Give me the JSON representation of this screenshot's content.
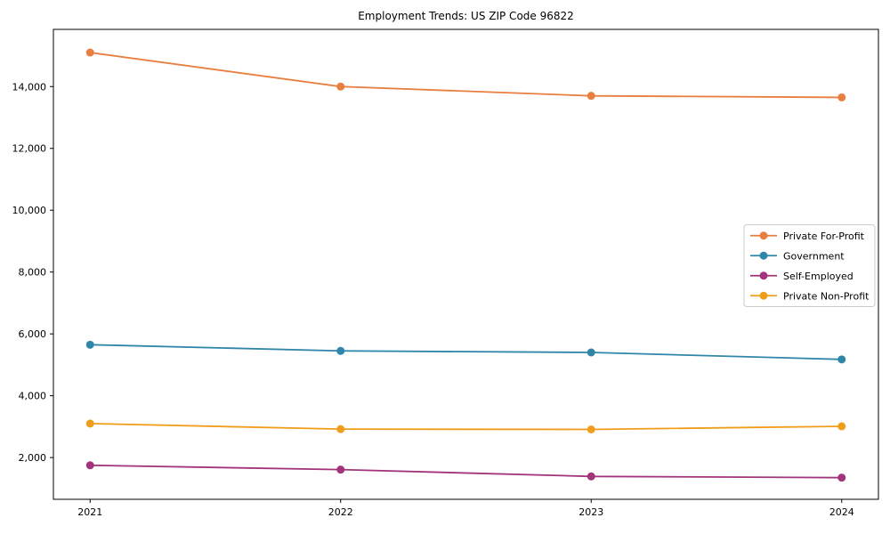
{
  "title": "Employment Trends: US ZIP Code 96822",
  "chart_data": {
    "type": "line",
    "title": "Employment Trends: US ZIP Code 96822",
    "xlabel": "",
    "ylabel": "",
    "x": [
      2021,
      2022,
      2023,
      2024
    ],
    "xtick_labels": [
      "2021",
      "2022",
      "2023",
      "2024"
    ],
    "yticks": [
      2000,
      4000,
      6000,
      8000,
      10000,
      12000,
      14000
    ],
    "ytick_labels": [
      "2,000",
      "4,000",
      "6,000",
      "8,000",
      "10,000",
      "12,000",
      "14,000"
    ],
    "ylim": [
      650,
      15850
    ],
    "grid": false,
    "legend_position": "center-right",
    "marker": "circle",
    "series": [
      {
        "name": "Private For-Profit",
        "color": "#e87e3f",
        "values": [
          15100,
          14000,
          13700,
          13650
        ]
      },
      {
        "name": "Government",
        "color": "#2f86a8",
        "values": [
          5650,
          5450,
          5400,
          5175
        ]
      },
      {
        "name": "Self-Employed",
        "color": "#a2347c",
        "values": [
          1750,
          1610,
          1390,
          1350
        ]
      },
      {
        "name": "Private Non-Profit",
        "color": "#f09d1c",
        "values": [
          3100,
          2920,
          2910,
          3010
        ]
      }
    ]
  }
}
